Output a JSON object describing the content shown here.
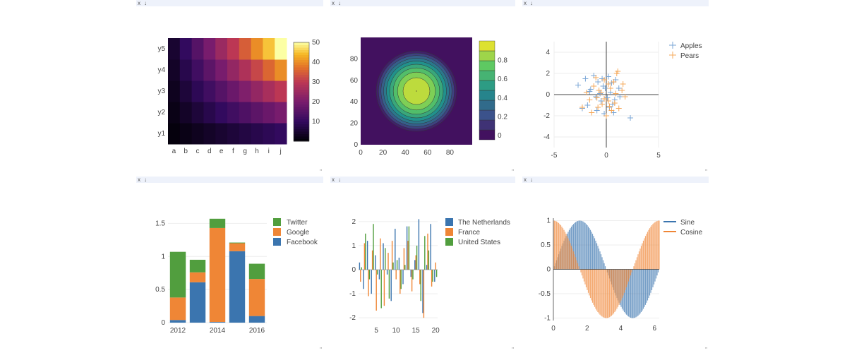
{
  "panel_controls": {
    "close": "x",
    "download": "↓",
    "resize": "\""
  },
  "colors": {
    "header": "#eef2fb",
    "blue": "#3b75af",
    "orange": "#ef8636",
    "green": "#519e3e",
    "light_blue": "#7aa6d6",
    "light_orange": "#f5a85a"
  },
  "chart_data": [
    {
      "type": "heatmap",
      "colorscale": "inferno-like",
      "x": [
        "a",
        "b",
        "c",
        "d",
        "e",
        "f",
        "g",
        "h",
        "i",
        "j"
      ],
      "y": [
        "y1",
        "y2",
        "y3",
        "y4",
        "y5"
      ],
      "z_rule": "value ≈ row_index × col_index (rows 1-5, cols 1-10)",
      "zlim": [
        0,
        50
      ],
      "colorbar_ticks": [
        10,
        20,
        30,
        40,
        50
      ]
    },
    {
      "type": "contour",
      "description_values": "radial peak centred at (50, 50) with max 1",
      "center": [
        50,
        50
      ],
      "xlim": [
        0,
        100
      ],
      "ylim": [
        0,
        100
      ],
      "xticks": [
        0,
        20,
        40,
        60,
        80
      ],
      "yticks": [
        0,
        20,
        40,
        60,
        80
      ],
      "levels": [
        0,
        0.1,
        0.2,
        0.3,
        0.4,
        0.5,
        0.6,
        0.7,
        0.8,
        0.9,
        1.0
      ],
      "colorbar_ticks": [
        0,
        0.2,
        0.4,
        0.6,
        0.8
      ]
    },
    {
      "type": "scatter",
      "marker": "cross",
      "xlim": [
        -5,
        5
      ],
      "ylim": [
        -5,
        5
      ],
      "xticks": [
        -5,
        0,
        5
      ],
      "yticks": [
        -4,
        -2,
        0,
        2,
        4
      ],
      "legend": "top-right",
      "series": [
        {
          "name": "Apples",
          "color": "#7aa6d6",
          "points": [
            [
              -2.0,
              1.5
            ],
            [
              -1.5,
              0.5
            ],
            [
              -0.8,
              1.2
            ],
            [
              -0.3,
              0.8
            ],
            [
              0.2,
              1.7
            ],
            [
              0.5,
              1.1
            ],
            [
              -1.0,
              -0.2
            ],
            [
              -0.5,
              -0.6
            ],
            [
              0.3,
              -1.2
            ],
            [
              0.8,
              -0.5
            ],
            [
              -2.7,
              0.9
            ],
            [
              -1.8,
              -1.0
            ],
            [
              -0.2,
              -1.8
            ],
            [
              0.4,
              0.2
            ],
            [
              1.2,
              0.6
            ],
            [
              -1.2,
              1.8
            ],
            [
              -0.6,
              0.1
            ],
            [
              0.1,
              -0.3
            ],
            [
              -0.9,
              -1.5
            ],
            [
              0.7,
              -1.7
            ],
            [
              1.3,
              -0.2
            ],
            [
              -1.6,
              0.3
            ],
            [
              -0.4,
              1.5
            ],
            [
              0.9,
              1.4
            ],
            [
              -2.3,
              -1.3
            ],
            [
              2.3,
              -2.2
            ],
            [
              -0.1,
              0.6
            ],
            [
              0.6,
              -0.9
            ]
          ]
        },
        {
          "name": "Pears",
          "color": "#f5a85a",
          "points": [
            [
              -1.2,
              0.8
            ],
            [
              -0.5,
              0.2
            ],
            [
              0.2,
              1.0
            ],
            [
              0.8,
              -0.8
            ],
            [
              1.5,
              0.4
            ],
            [
              -0.8,
              -1.2
            ],
            [
              0.5,
              -1.5
            ],
            [
              -1.6,
              -0.5
            ],
            [
              1.0,
              2.0
            ],
            [
              -0.2,
              -0.4
            ],
            [
              0.4,
              0.6
            ],
            [
              -2.3,
              -1.2
            ],
            [
              1.8,
              -0.2
            ],
            [
              0.0,
              -2.0
            ],
            [
              -1.0,
              1.6
            ],
            [
              0.7,
              1.2
            ],
            [
              -0.4,
              -0.9
            ],
            [
              1.2,
              -1.3
            ],
            [
              -0.7,
              0.4
            ],
            [
              0.2,
              -0.6
            ],
            [
              -1.9,
              0.2
            ],
            [
              1.1,
              2.2
            ],
            [
              -0.2,
              1.4
            ],
            [
              0.9,
              0.1
            ],
            [
              -1.4,
              -1.7
            ],
            [
              0.3,
              -1.1
            ],
            [
              1.6,
              1.0
            ],
            [
              -0.9,
              -0.3
            ]
          ]
        }
      ]
    },
    {
      "type": "bar",
      "stacked": true,
      "categories": [
        2012,
        2013,
        2014,
        2015,
        2016
      ],
      "xticks": [
        2012,
        2014,
        2016
      ],
      "yticks": [
        0,
        0.5,
        1,
        1.5
      ],
      "ylim": [
        0,
        1.6
      ],
      "legend": "top-right",
      "series": [
        {
          "name": "Facebook",
          "color": "#3b75af",
          "values": [
            0.04,
            0.61,
            0.01,
            1.08,
            0.1
          ]
        },
        {
          "name": "Google",
          "color": "#ef8636",
          "values": [
            0.34,
            0.15,
            1.42,
            0.12,
            0.56
          ]
        },
        {
          "name": "Twitter",
          "color": "#519e3e",
          "values": [
            0.69,
            0.19,
            0.14,
            0.01,
            0.23
          ]
        }
      ],
      "legend_order": [
        "Twitter",
        "Google",
        "Facebook"
      ]
    },
    {
      "type": "bar",
      "grouped": true,
      "x": [
        1,
        2,
        3,
        4,
        5,
        6,
        7,
        8,
        9,
        10,
        11,
        12,
        13,
        14,
        15,
        16,
        17,
        18,
        19,
        20
      ],
      "xticks": [
        5,
        10,
        15,
        20
      ],
      "yticks": [
        -2,
        -1,
        0,
        1,
        2
      ],
      "ylim": [
        -2.2,
        2.2
      ],
      "legend": "top-right",
      "series": [
        {
          "name": "The Netherlands",
          "color": "#3b75af",
          "values": [
            0.3,
            -0.8,
            1.2,
            -1.0,
            0.6,
            -0.4,
            1.1,
            -0.2,
            -1.3,
            1.7,
            0.5,
            -0.6,
            1.8,
            -0.3,
            0.4,
            2.1,
            -1.8,
            0.2,
            1.9,
            -0.5
          ]
        },
        {
          "name": "France",
          "color": "#ef8636",
          "values": [
            -0.5,
            1.1,
            -1.1,
            0.8,
            -1.7,
            1.3,
            -1.5,
            0.7,
            1.2,
            -0.4,
            -1.0,
            0.9,
            1.2,
            -0.9,
            0.6,
            -0.6,
            -2.0,
            1.5,
            -0.7,
            0.3
          ]
        },
        {
          "name": "United States",
          "color": "#519e3e",
          "values": [
            0.1,
            1.5,
            -0.4,
            1.9,
            -0.2,
            -1.6,
            0.9,
            -1.2,
            0.3,
            0.4,
            -0.8,
            0.2,
            1.8,
            -0.4,
            1.0,
            -1.3,
            1.4,
            0.8,
            -0.5,
            -0.3
          ]
        }
      ]
    },
    {
      "type": "bar",
      "overlay": true,
      "function_series": [
        {
          "name": "Sine",
          "color": "#3b75af",
          "fn": "sin"
        },
        {
          "name": "Cosine",
          "color": "#ef8636",
          "fn": "cos"
        }
      ],
      "xlim": [
        0,
        6.283
      ],
      "xticks": [
        0,
        2,
        4,
        6
      ],
      "ylim": [
        -1.05,
        1.05
      ],
      "yticks": [
        -1,
        -0.5,
        0,
        0.5,
        1
      ],
      "samples": 100,
      "legend": "top-right"
    }
  ]
}
